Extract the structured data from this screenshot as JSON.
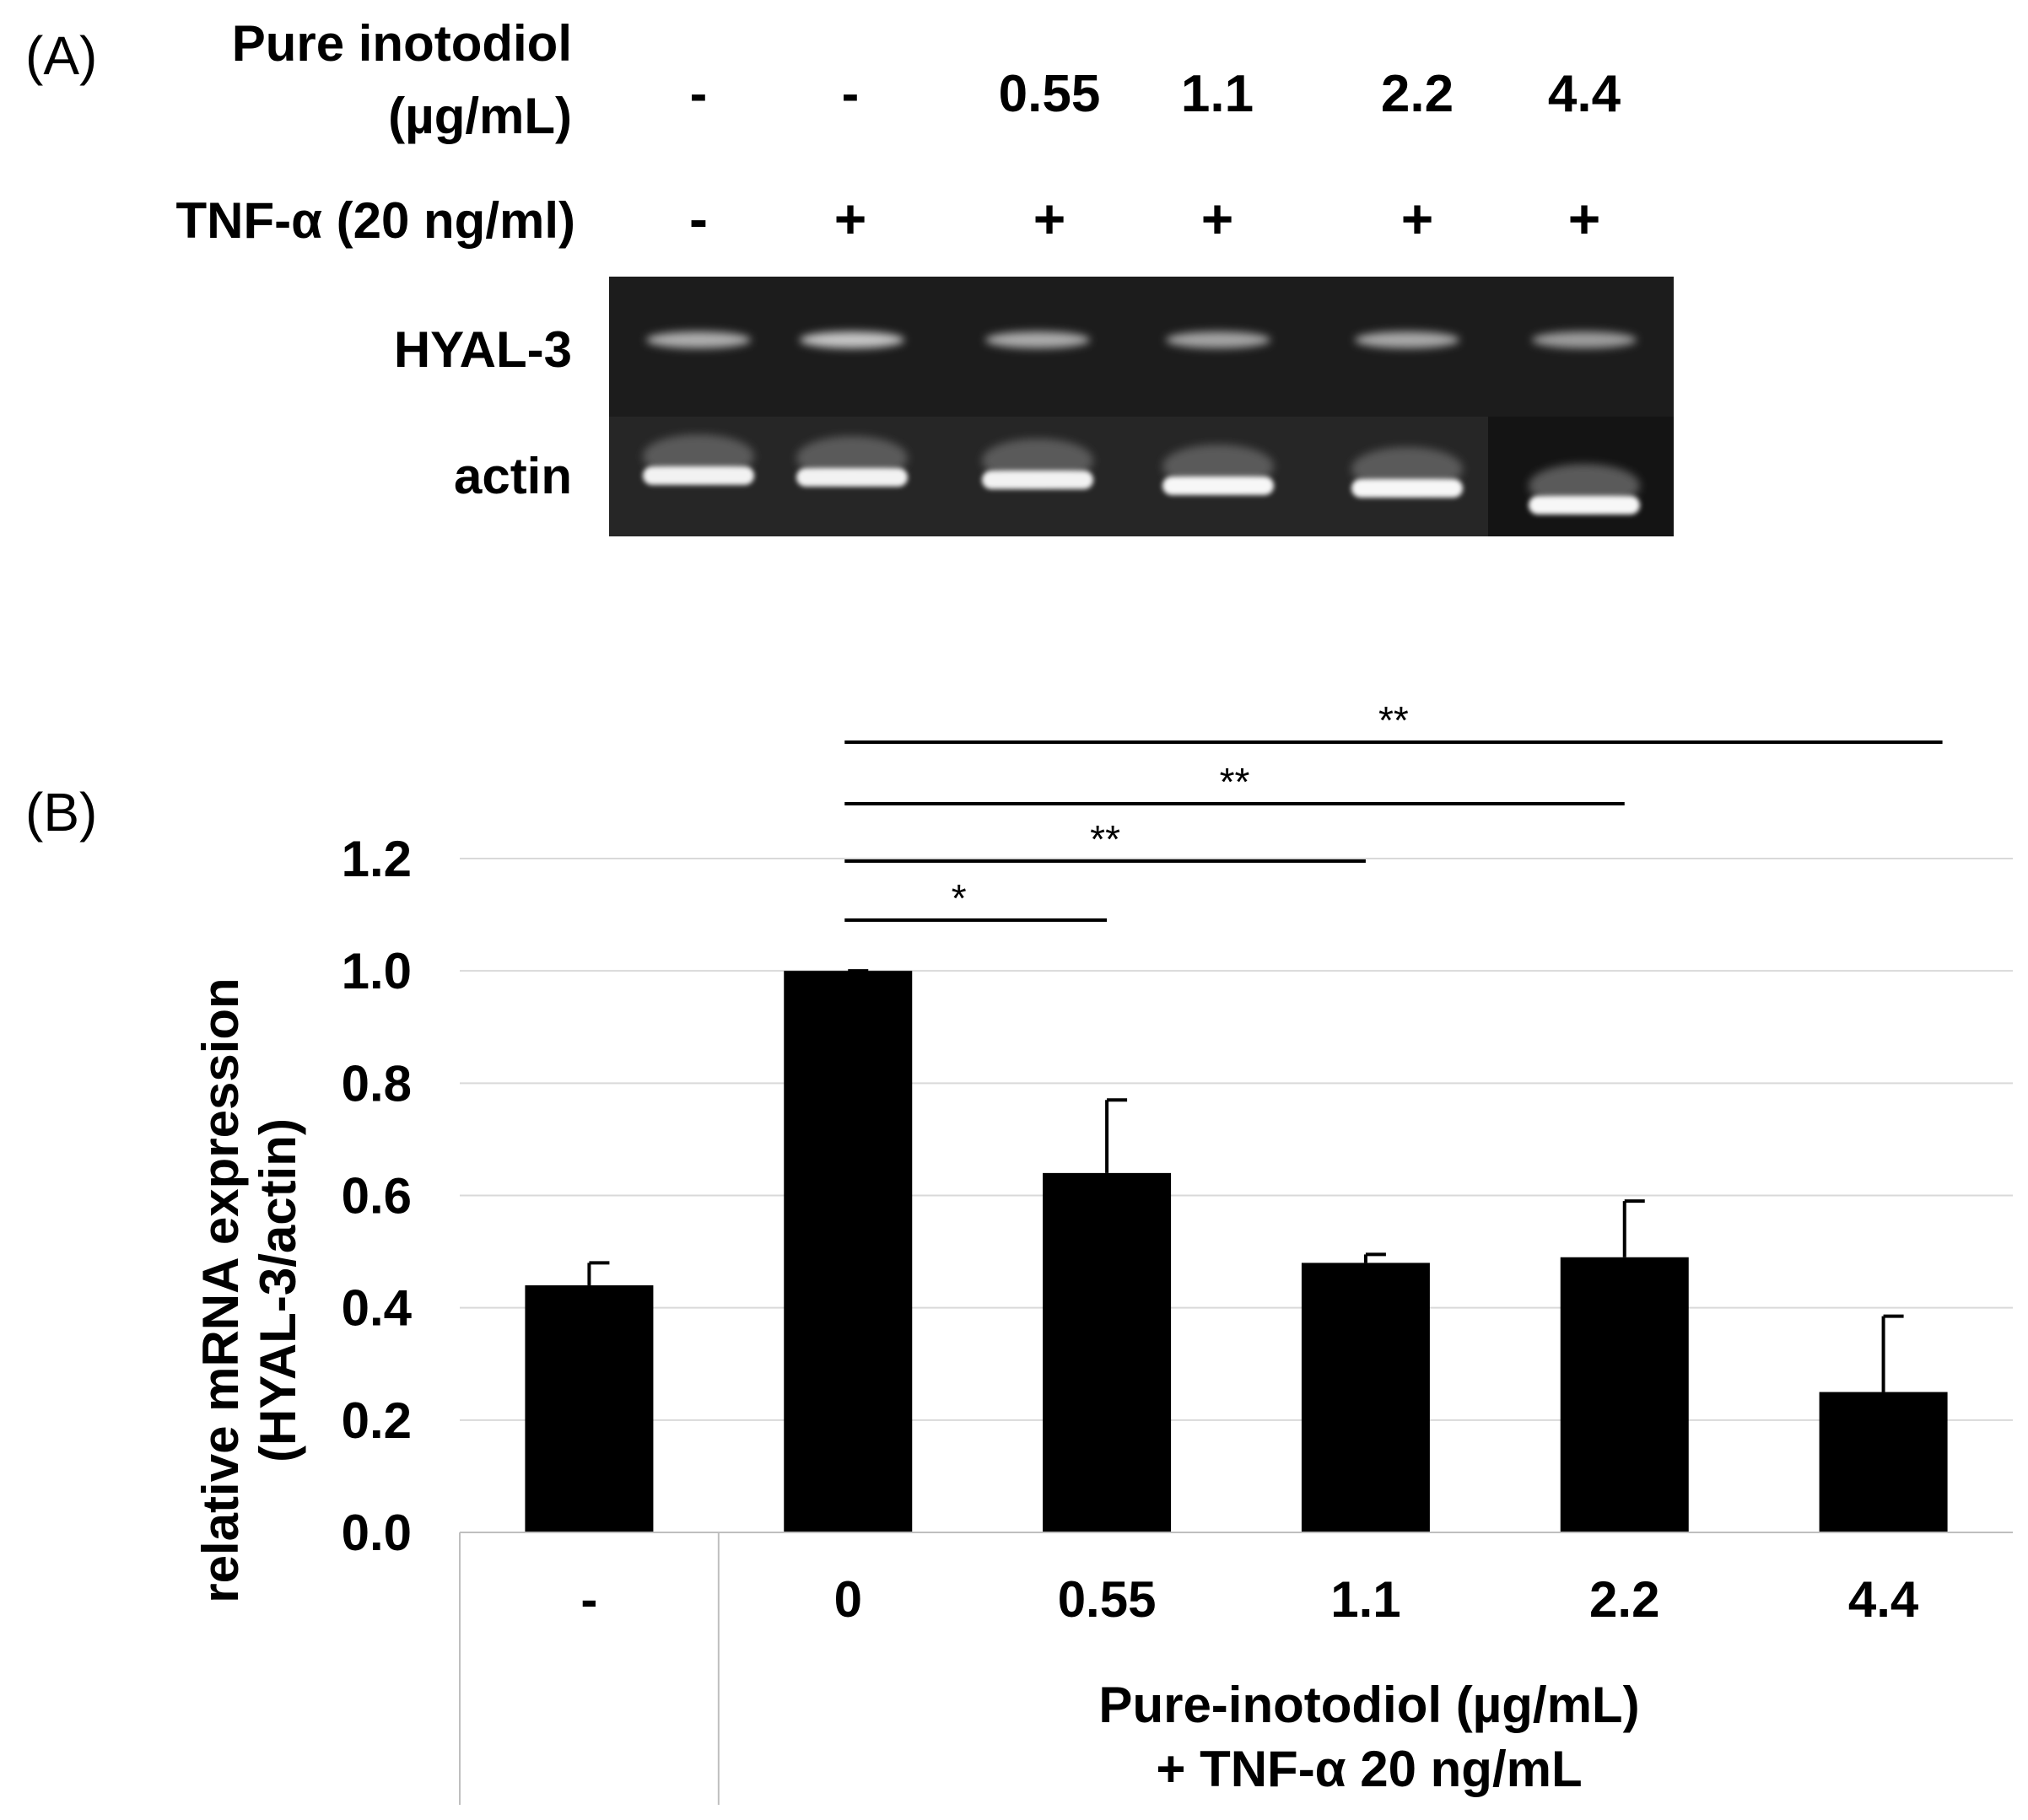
{
  "panel_a": {
    "label": "(A)",
    "treatment_label_line1": "Pure inotodiol",
    "treatment_label_line2": "(µg/mL)",
    "concentrations": [
      "-",
      "-",
      "0.55",
      "1.1",
      "2.2",
      "4.4"
    ],
    "tnf_label": "TNF-α (20 ng/ml)",
    "tnf_values": [
      "-",
      "+",
      "+",
      "+",
      "+",
      "+"
    ],
    "bands": [
      {
        "name": "HYAL-3"
      },
      {
        "name": "actin"
      }
    ],
    "hyal3_intensity": [
      0.62,
      0.78,
      0.6,
      0.55,
      0.58,
      0.5
    ],
    "actin_intensity": [
      0.95,
      0.95,
      0.95,
      0.97,
      0.97,
      0.97
    ]
  },
  "panel_b": {
    "label": "(B)",
    "group_label_line1": "Pure-inotodiol (µg/mL)",
    "group_label_line2": "+ TNF-α 20 ng/mL"
  },
  "colors": {
    "bar": "#000000",
    "grid": "#d9d9d9",
    "axis": "#bfbfbf",
    "gel_bg": "#1c1c1c"
  },
  "chart_data": {
    "type": "bar",
    "categories": [
      "-",
      "0",
      "0.55",
      "1.1",
      "2.2",
      "4.4"
    ],
    "values": [
      0.44,
      1.0,
      0.64,
      0.48,
      0.49,
      0.25
    ],
    "errors": [
      0.04,
      0.0,
      0.13,
      0.015,
      0.1,
      0.135
    ],
    "ylabel_line1": "relative mRNA expression",
    "ylabel_line2": "(HYAL-3/actin)",
    "ylim": [
      0,
      1.2
    ],
    "yticks": [
      "0.0",
      "0.2",
      "0.4",
      "0.6",
      "0.8",
      "1.0",
      "1.2"
    ],
    "grid": true,
    "significance": [
      {
        "from": "0",
        "to": "0.55",
        "label": "*"
      },
      {
        "from": "0",
        "to": "1.1",
        "label": "**"
      },
      {
        "from": "0",
        "to": "2.2",
        "label": "**"
      },
      {
        "from": "0",
        "to": "4.4",
        "label": "**"
      }
    ]
  }
}
